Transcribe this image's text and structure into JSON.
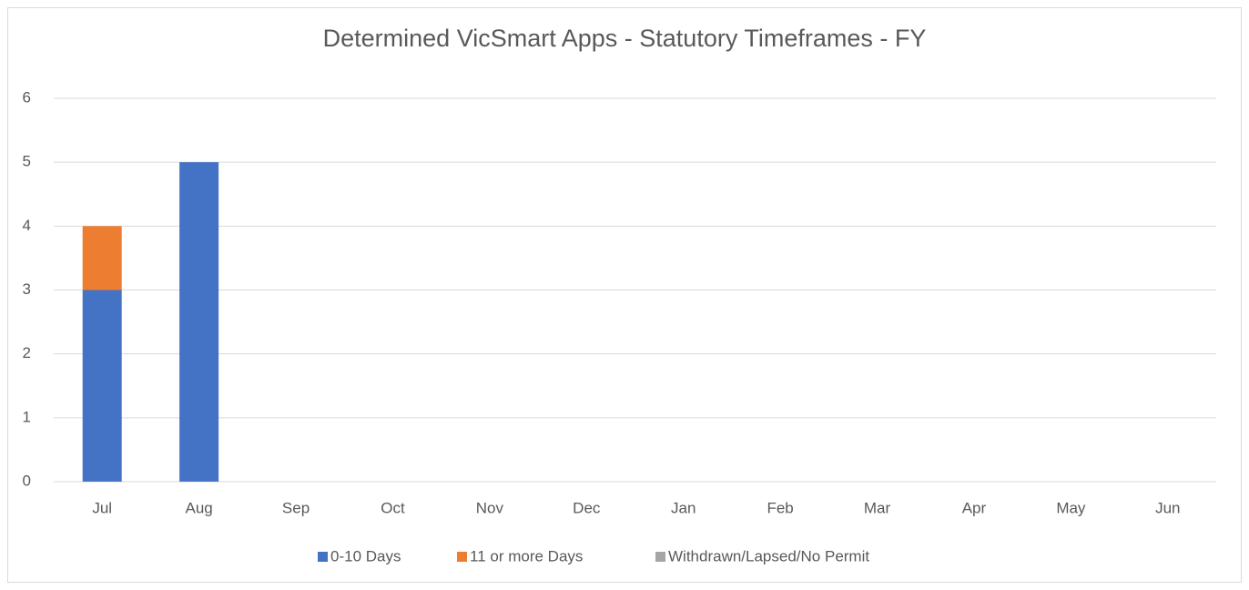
{
  "chart_data": {
    "type": "stacked_bar",
    "title": "Determined VicSmart Apps - Statutory Timeframes - FY",
    "categories": [
      "Jul",
      "Aug",
      "Sep",
      "Oct",
      "Nov",
      "Dec",
      "Jan",
      "Feb",
      "Mar",
      "Apr",
      "May",
      "Jun"
    ],
    "series": [
      {
        "name": "0-10 Days",
        "color": "#4472c4",
        "values": [
          3,
          5,
          0,
          0,
          0,
          0,
          0,
          0,
          0,
          0,
          0,
          0
        ]
      },
      {
        "name": "11 or more Days",
        "color": "#ed7d31",
        "values": [
          1,
          0,
          0,
          0,
          0,
          0,
          0,
          0,
          0,
          0,
          0,
          0
        ]
      },
      {
        "name": "Withdrawn/Lapsed/No Permit",
        "color": "#a5a5a5",
        "values": [
          0,
          0,
          0,
          0,
          0,
          0,
          0,
          0,
          0,
          0,
          0,
          0
        ]
      }
    ],
    "ylim": [
      0,
      6
    ],
    "yticks": [
      0,
      1,
      2,
      3,
      4,
      5,
      6
    ],
    "grid": true,
    "legend": "bottom"
  }
}
